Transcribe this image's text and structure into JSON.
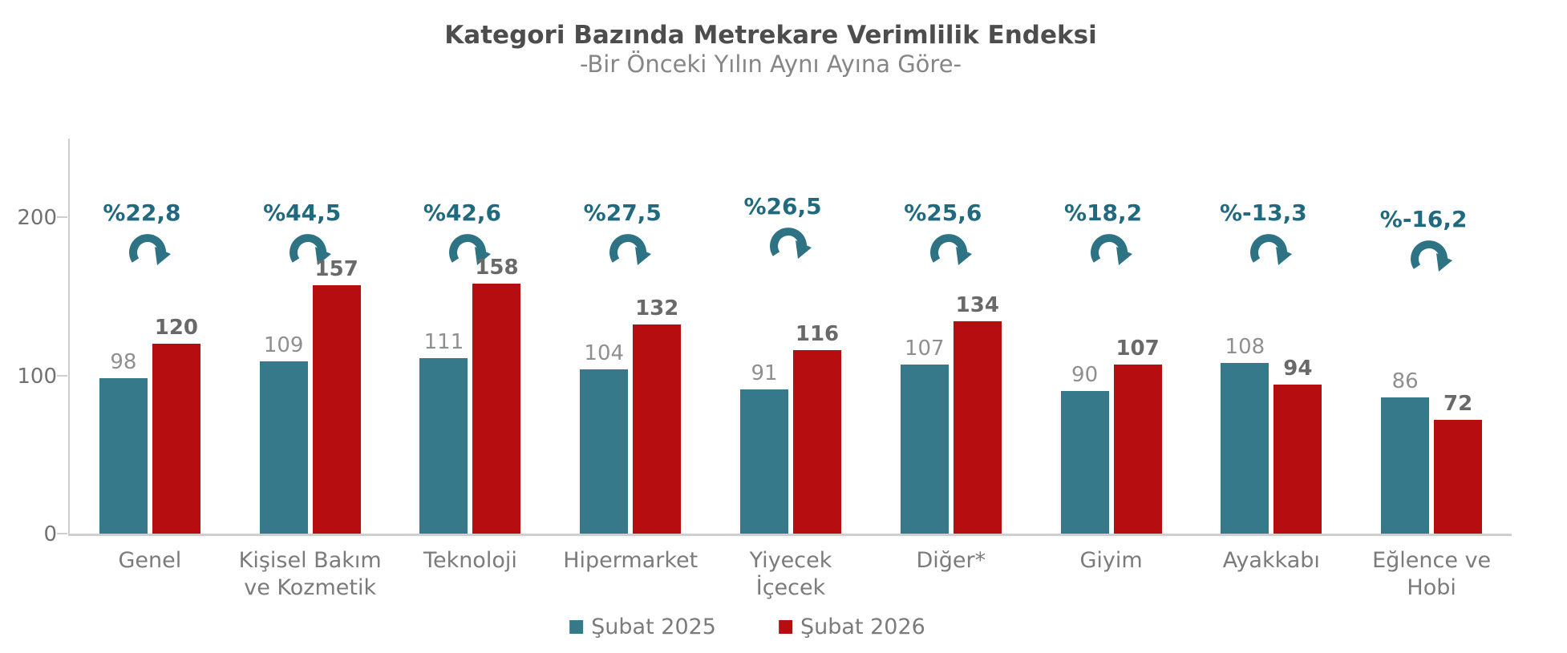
{
  "title": "Kategori Bazında Metrekare Verimlilik Endeksi",
  "subtitle": "-Bir Önceki Yılın Aynı Ayına Göre-",
  "chart_data": {
    "type": "bar",
    "categories": [
      "Genel",
      "Kişisel Bakım ve Kozmetik",
      "Teknoloji",
      "Hipermarket",
      "Yiyecek İçecek",
      "Diğer*",
      "Giyim",
      "Ayakkabı",
      "Eğlence ve Hobi"
    ],
    "category_label_lines": [
      [
        "Genel"
      ],
      [
        "Kişisel Bakım",
        "ve Kozmetik"
      ],
      [
        "Teknoloji"
      ],
      [
        "Hipermarket"
      ],
      [
        "Yiyecek",
        "İçecek"
      ],
      [
        "Diğer*"
      ],
      [
        "Giyim"
      ],
      [
        "Ayakkabı"
      ],
      [
        "Eğlence ve",
        "Hobi"
      ]
    ],
    "series": [
      {
        "name": "Şubat 2025",
        "color": "#35798a",
        "values": [
          98,
          109,
          111,
          104,
          91,
          107,
          90,
          108,
          86
        ]
      },
      {
        "name": "Şubat 2026",
        "color": "#b60d11",
        "values": [
          120,
          157,
          158,
          132,
          116,
          134,
          107,
          94,
          72
        ]
      }
    ],
    "percent_change_labels": [
      "%22,8",
      "%44,5",
      "%42,6",
      "%27,5",
      "%26,5",
      "%25,6",
      "%18,2",
      "%-13,3",
      "%-16,2"
    ],
    "percent_label_dy": [
      0,
      0,
      0,
      0,
      -8,
      0,
      0,
      0,
      8
    ],
    "yticks": [
      0,
      100,
      200
    ],
    "ylim": [
      0,
      251
    ],
    "grid": false,
    "legend_position": "bottom"
  },
  "colors": {
    "bar_2025": "#35798a",
    "bar_2026": "#b60d11",
    "percent_label": "#21697e",
    "arrow": "#2d7384",
    "title": "#4d4d4d",
    "subtitle": "#868686",
    "axis_line": "#cfcfcf",
    "tick_label": "#717171",
    "category_label": "#7b7b7b",
    "value_label_2025": "#8f8f8f",
    "value_label_2026": "#696969"
  }
}
